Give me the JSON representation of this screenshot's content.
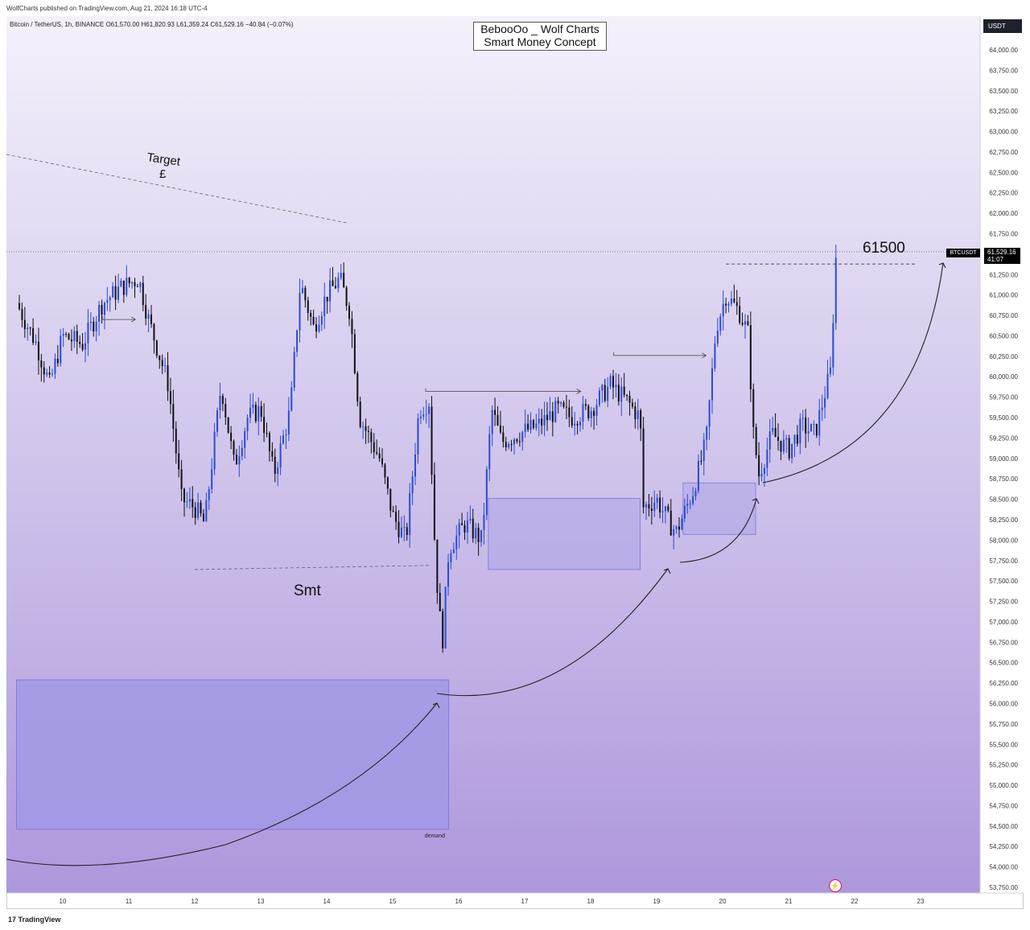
{
  "header": {
    "published": "WolfCharts published on TradingView.com, Aug 21, 2024 16:18 UTC-4",
    "symbol_line": "Bitcoin / TetherUS, 1h, BINANCE  O61,570.00  H61,820.93  L61,359.24  C61,529.16  −40.84 (−0.07%)"
  },
  "title_box": {
    "line1": "BebooOo _ Wolf Charts",
    "line2": "Smart Money Concept"
  },
  "currency_badge": "USDT",
  "footer": {
    "brand": "TradingView"
  },
  "price_tag": {
    "symbol": "BTCUSDT",
    "price": "61,529.16",
    "countdown": "41:07"
  },
  "colors": {
    "bg_top": "#f4f1fb",
    "bg_bottom": "#ad98dc",
    "candle": "#2a4bd7",
    "candle_dark": "#111111",
    "zone": "#9e97e6"
  },
  "chart_data": {
    "type": "candlestick",
    "title": "BebooOo _ Wolf Charts / Smart Money Concept",
    "ylim": [
      53650,
      64200
    ],
    "y_ticks": [
      "64,000.00",
      "63,750.00",
      "63,500.00",
      "63,250.00",
      "63,000.00",
      "62,750.00",
      "62,500.00",
      "62,250.00",
      "62,000.00",
      "61,750.00",
      "61,500.00",
      "61,250.00",
      "61,000.00",
      "60,750.00",
      "60,500.00",
      "60,250.00",
      "60,000.00",
      "59,750.00",
      "59,500.00",
      "59,250.00",
      "59,000.00",
      "58,750.00",
      "58,500.00",
      "58,250.00",
      "58,000.00",
      "57,750.00",
      "57,500.00",
      "57,250.00",
      "57,000.00",
      "56,750.00",
      "56,500.00",
      "56,250.00",
      "56,000.00",
      "55,750.00",
      "55,500.00",
      "55,250.00",
      "55,000.00",
      "54,750.00",
      "54,500.00",
      "54,250.00",
      "54,000.00",
      "53,750.00"
    ],
    "x_ticks": [
      "10",
      "11",
      "12",
      "13",
      "14",
      "15",
      "16",
      "17",
      "18",
      "19",
      "20",
      "21",
      "22",
      "23"
    ],
    "last_price": 61529.16,
    "annotations": {
      "target": "Target\n£",
      "smt": "Smt",
      "level": "61500",
      "demand": "demand"
    },
    "zones": [
      {
        "label": "demand",
        "day_start": 9.3,
        "day_end": 15.85,
        "low": 54460,
        "high": 56290
      },
      {
        "label": "",
        "day_start": 16.45,
        "day_end": 18.75,
        "low": 57640,
        "high": 58510
      },
      {
        "label": "",
        "day_start": 19.4,
        "day_end": 20.5,
        "low": 58070,
        "high": 58700
      }
    ],
    "path": [
      [
        9.3,
        60900
      ],
      [
        9.6,
        60400
      ],
      [
        9.8,
        59900
      ],
      [
        10.0,
        60500
      ],
      [
        10.3,
        60400
      ],
      [
        10.6,
        60900
      ],
      [
        10.9,
        61100
      ],
      [
        11.15,
        61200
      ],
      [
        11.3,
        60700
      ],
      [
        11.6,
        59900
      ],
      [
        11.8,
        58500
      ],
      [
        12.0,
        58400
      ],
      [
        12.15,
        58200
      ],
      [
        12.4,
        59900
      ],
      [
        12.6,
        58900
      ],
      [
        12.8,
        59500
      ],
      [
        13.0,
        59600
      ],
      [
        13.2,
        58800
      ],
      [
        13.45,
        59600
      ],
      [
        13.6,
        61150
      ],
      [
        13.8,
        60600
      ],
      [
        14.0,
        61000
      ],
      [
        14.2,
        61200
      ],
      [
        14.35,
        60800
      ],
      [
        14.5,
        59500
      ],
      [
        14.8,
        59000
      ],
      [
        15.0,
        58300
      ],
      [
        15.2,
        58000
      ],
      [
        15.4,
        59600
      ],
      [
        15.55,
        59700
      ],
      [
        15.65,
        57700
      ],
      [
        15.75,
        56700
      ],
      [
        15.85,
        57900
      ],
      [
        16.1,
        58200
      ],
      [
        16.35,
        58000
      ],
      [
        16.5,
        59600
      ],
      [
        16.65,
        59200
      ],
      [
        16.9,
        59300
      ],
      [
        17.2,
        59400
      ],
      [
        17.5,
        59600
      ],
      [
        17.7,
        59500
      ],
      [
        18.0,
        59600
      ],
      [
        18.3,
        59900
      ],
      [
        18.55,
        59700
      ],
      [
        18.75,
        59500
      ],
      [
        18.8,
        58400
      ],
      [
        19.0,
        58500
      ],
      [
        19.2,
        58200
      ],
      [
        19.3,
        58100
      ],
      [
        19.55,
        58600
      ],
      [
        19.75,
        59200
      ],
      [
        19.9,
        60600
      ],
      [
        20.05,
        61000
      ],
      [
        20.25,
        60800
      ],
      [
        20.4,
        60500
      ],
      [
        20.45,
        59400
      ],
      [
        20.55,
        58800
      ],
      [
        20.75,
        59300
      ],
      [
        21.0,
        59100
      ],
      [
        21.2,
        59400
      ],
      [
        21.4,
        59300
      ],
      [
        21.55,
        59800
      ],
      [
        21.65,
        60100
      ],
      [
        21.7,
        61400
      ],
      [
        21.75,
        61529
      ]
    ]
  }
}
